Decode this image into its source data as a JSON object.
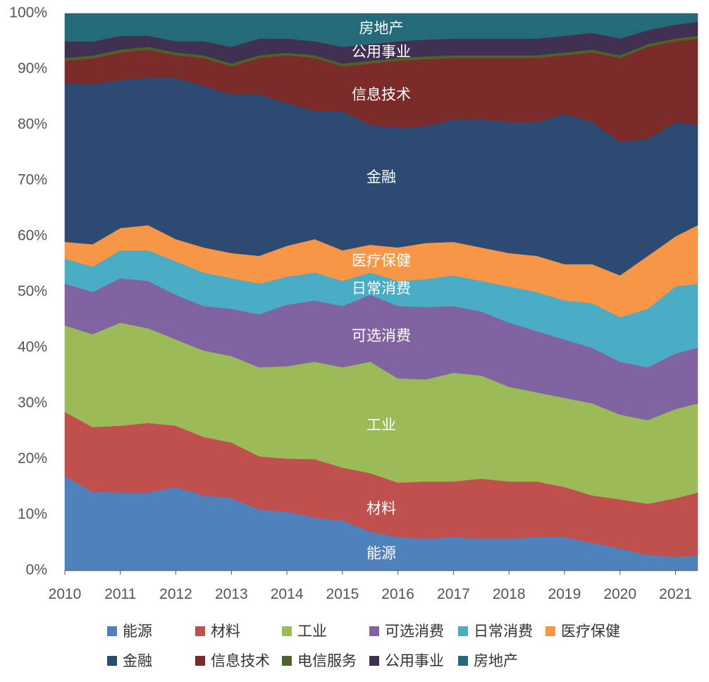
{
  "chart_data": {
    "type": "area",
    "stacked": true,
    "normalized": true,
    "x": [
      2010.0,
      2010.5,
      2011.0,
      2011.5,
      2012.0,
      2012.5,
      2013.0,
      2013.5,
      2014.0,
      2014.5,
      2015.0,
      2015.5,
      2016.0,
      2016.5,
      2017.0,
      2017.5,
      2018.0,
      2018.5,
      2019.0,
      2019.5,
      2020.0,
      2020.5,
      2021.0,
      2021.4
    ],
    "xlim": [
      2010,
      2021.4
    ],
    "ylim": [
      0,
      100
    ],
    "x_ticks": [
      "2010",
      "2011",
      "2012",
      "2013",
      "2014",
      "2015",
      "2016",
      "2017",
      "2018",
      "2019",
      "2020",
      "2021"
    ],
    "y_ticks": [
      "0%",
      "10%",
      "20%",
      "30%",
      "40%",
      "50%",
      "60%",
      "70%",
      "80%",
      "90%",
      "100%"
    ],
    "series": [
      {
        "name": "能源",
        "color": "#4f81bd",
        "values": [
          17.0,
          14.0,
          14.0,
          14.0,
          15.0,
          13.5,
          13.0,
          11.0,
          10.5,
          9.5,
          9.0,
          7.0,
          6.0,
          5.8,
          6.0,
          5.8,
          5.8,
          6.0,
          6.0,
          5.0,
          4.0,
          2.8,
          2.5,
          2.7
        ]
      },
      {
        "name": "材料",
        "color": "#c0504d",
        "values": [
          11.5,
          11.5,
          12.0,
          12.5,
          11.0,
          10.5,
          10.0,
          9.5,
          9.5,
          10.5,
          9.5,
          10.5,
          9.8,
          10.2,
          10.0,
          10.7,
          10.2,
          10.0,
          9.0,
          8.5,
          8.8,
          9.2,
          10.5,
          11.3
        ]
      },
      {
        "name": "工业",
        "color": "#9bbb59",
        "values": [
          15.5,
          16.5,
          18.5,
          17.0,
          15.5,
          15.5,
          15.5,
          16.0,
          16.5,
          17.5,
          18.0,
          20.0,
          18.7,
          18.3,
          19.5,
          18.5,
          17.0,
          16.0,
          16.0,
          16.5,
          15.2,
          15.0,
          16.0,
          16.0
        ]
      },
      {
        "name": "可选消费",
        "color": "#8064a2",
        "values": [
          7.5,
          7.5,
          8.0,
          8.5,
          8.0,
          8.0,
          8.5,
          9.5,
          11.0,
          11.0,
          11.0,
          12.0,
          13.0,
          13.0,
          12.0,
          11.5,
          11.5,
          11.0,
          10.5,
          10.0,
          9.5,
          9.5,
          10.0,
          10.0
        ]
      },
      {
        "name": "日常消费",
        "color": "#4bacc6",
        "values": [
          4.5,
          4.5,
          5.0,
          5.5,
          6.0,
          6.0,
          5.5,
          5.5,
          5.0,
          5.0,
          4.5,
          4.0,
          4.5,
          5.0,
          5.5,
          5.5,
          6.5,
          7.0,
          7.0,
          8.0,
          8.0,
          10.5,
          12.0,
          11.5
        ]
      },
      {
        "name": "医疗保健",
        "color": "#f79646",
        "values": [
          3.0,
          4.0,
          4.0,
          4.5,
          4.0,
          4.5,
          4.5,
          5.0,
          5.5,
          6.0,
          5.5,
          5.0,
          6.0,
          6.5,
          6.0,
          6.0,
          6.0,
          6.5,
          6.5,
          7.0,
          7.5,
          9.5,
          9.0,
          10.5
        ]
      },
      {
        "name": "金融",
        "color": "#2c4a72",
        "values": [
          28.5,
          28.5,
          26.5,
          26.5,
          29.0,
          29.0,
          28.5,
          29.0,
          25.5,
          23.0,
          25.0,
          21.5,
          21.5,
          21.0,
          22.0,
          23.0,
          23.5,
          24.0,
          27.0,
          25.5,
          24.0,
          21.0,
          20.5,
          18.0
        ]
      },
      {
        "name": "信息技术",
        "color": "#7b2b2a",
        "values": [
          4.0,
          4.5,
          5.0,
          5.0,
          4.0,
          5.0,
          5.0,
          6.5,
          8.5,
          9.5,
          8.0,
          11.0,
          12.0,
          12.0,
          11.0,
          11.0,
          11.5,
          11.5,
          10.5,
          12.5,
          15.0,
          16.5,
          14.5,
          15.5
        ]
      },
      {
        "name": "电信服务",
        "color": "#4f6228",
        "values": [
          0.5,
          0.5,
          0.5,
          0.5,
          0.5,
          0.5,
          0.5,
          0.5,
          0.5,
          0.5,
          0.5,
          0.5,
          0.5,
          0.5,
          0.5,
          0.5,
          0.5,
          0.5,
          0.5,
          0.5,
          0.5,
          0.5,
          0.5,
          0.5
        ]
      },
      {
        "name": "公用事业",
        "color": "#403152",
        "values": [
          3.0,
          2.5,
          2.5,
          2.0,
          2.0,
          2.5,
          3.0,
          3.0,
          2.5,
          2.5,
          3.0,
          3.0,
          3.0,
          3.0,
          3.0,
          3.0,
          3.0,
          3.0,
          3.0,
          3.0,
          3.0,
          2.5,
          2.5,
          2.5
        ]
      },
      {
        "name": "房地产",
        "color": "#256a78",
        "values": [
          5.0,
          5.0,
          4.0,
          4.0,
          5.0,
          5.0,
          6.0,
          4.5,
          4.5,
          5.0,
          6.0,
          5.5,
          5.0,
          4.7,
          4.5,
          4.5,
          4.5,
          4.5,
          4.0,
          3.5,
          4.5,
          3.0,
          2.0,
          1.5
        ]
      }
    ],
    "area_labels": [
      {
        "series": "能源",
        "text": "能源",
        "x": 2015.7,
        "y": 3.0
      },
      {
        "series": "材料",
        "text": "材料",
        "x": 2015.7,
        "y": 11.0
      },
      {
        "series": "工业",
        "text": "工业",
        "x": 2015.7,
        "y": 26.0
      },
      {
        "series": "可选消费",
        "text": "可选消费",
        "x": 2015.7,
        "y": 42.0
      },
      {
        "series": "日常消费",
        "text": "日常消费",
        "x": 2015.7,
        "y": 50.5
      },
      {
        "series": "医疗保健",
        "text": "医疗保健",
        "x": 2015.7,
        "y": 55.5
      },
      {
        "series": "金融",
        "text": "金融",
        "x": 2015.7,
        "y": 70.5
      },
      {
        "series": "信息技术",
        "text": "信息技术",
        "x": 2015.7,
        "y": 85.3
      },
      {
        "series": "公用事业",
        "text": "公用事业",
        "x": 2015.7,
        "y": 93.0
      },
      {
        "series": "房地产",
        "text": "房地产",
        "x": 2015.7,
        "y": 97.2
      }
    ],
    "legend": {
      "placement": "bottom",
      "items": [
        "能源",
        "材料",
        "工业",
        "可选消费",
        "日常消费",
        "医疗保健",
        "金融",
        "信息技术",
        "电信服务",
        "公用事业",
        "房地产"
      ]
    },
    "grid": false
  }
}
